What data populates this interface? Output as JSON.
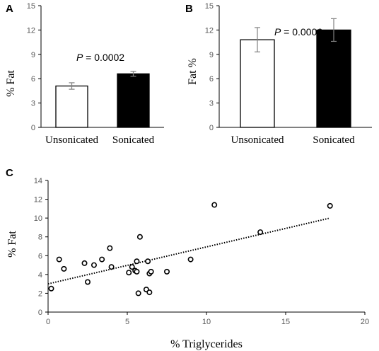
{
  "chart_data": [
    {
      "panel": "A",
      "type": "bar",
      "categories": [
        "Unsonicated",
        "Sonicated"
      ],
      "values": [
        5.1,
        6.6
      ],
      "errors": [
        0.4,
        0.3
      ],
      "bar_colors": [
        "#ffffff",
        "#000000"
      ],
      "ylabel": "% Fat",
      "ylim": [
        0,
        15
      ],
      "yticks": [
        0,
        3,
        6,
        9,
        12,
        15
      ],
      "annotation": {
        "label": "P",
        "text": " = 0.0002"
      }
    },
    {
      "panel": "B",
      "type": "bar",
      "categories": [
        "Unsonicated",
        "Sonicated"
      ],
      "values": [
        10.8,
        12.0
      ],
      "errors": [
        1.5,
        1.4
      ],
      "bar_colors": [
        "#ffffff",
        "#000000"
      ],
      "ylabel": "Fat %",
      "ylim": [
        0,
        15
      ],
      "yticks": [
        0,
        3,
        6,
        9,
        12,
        15
      ],
      "annotation": {
        "label": "P",
        "text": " = 0.0006"
      }
    },
    {
      "panel": "C",
      "type": "scatter",
      "xlabel": "% Triglycerides",
      "ylabel": "% Fat",
      "xlim": [
        0,
        20
      ],
      "ylim": [
        0,
        14
      ],
      "xticks": [
        0,
        5,
        10,
        15,
        20
      ],
      "yticks": [
        0,
        2,
        4,
        6,
        8,
        10,
        12,
        14
      ],
      "trendline": {
        "style": "dotted",
        "x": [
          0,
          17.8
        ],
        "y": [
          3.0,
          10.0
        ]
      },
      "points": [
        [
          0.2,
          2.5
        ],
        [
          0.7,
          5.6
        ],
        [
          1.0,
          4.6
        ],
        [
          2.3,
          5.2
        ],
        [
          2.5,
          3.2
        ],
        [
          2.9,
          5.0
        ],
        [
          3.4,
          5.6
        ],
        [
          3.9,
          6.8
        ],
        [
          4.0,
          4.8
        ],
        [
          5.1,
          4.2
        ],
        [
          5.3,
          4.8
        ],
        [
          5.5,
          4.4
        ],
        [
          5.6,
          5.4
        ],
        [
          5.6,
          4.3
        ],
        [
          5.7,
          2.0
        ],
        [
          5.8,
          8.0
        ],
        [
          6.2,
          2.4
        ],
        [
          6.3,
          5.4
        ],
        [
          6.4,
          2.1
        ],
        [
          6.4,
          4.1
        ],
        [
          6.5,
          4.3
        ],
        [
          7.5,
          4.3
        ],
        [
          9.0,
          5.6
        ],
        [
          10.5,
          11.4
        ],
        [
          13.4,
          8.5
        ],
        [
          17.8,
          11.3
        ]
      ]
    }
  ]
}
